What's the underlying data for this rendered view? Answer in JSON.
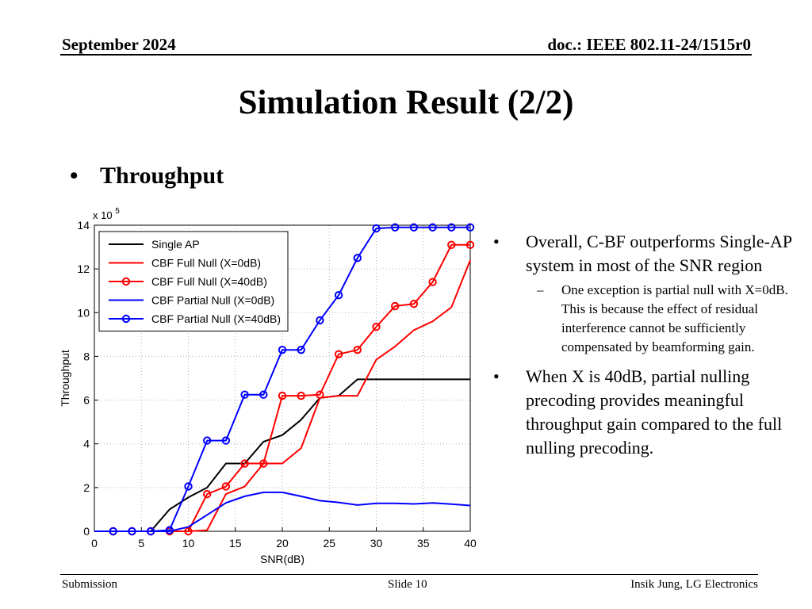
{
  "header": {
    "date": "September 2024",
    "doc": "doc.: IEEE 802.11-24/1515r0"
  },
  "title": "Simulation Result (2/2)",
  "section_bullet": "Throughput",
  "right_text": {
    "bullet1": "Overall, C-BF outperforms Single-AP system in most of the SNR region",
    "sub1": "One exception is partial null with X=0dB. This is because the effect of residual interference cannot be sufficiently compensated by beamforming gain.",
    "bullet2": "When X is 40dB,  partial nulling precoding provides meaningful throughput gain compared to the full nulling precoding."
  },
  "footer": {
    "left": "Submission",
    "middle": "Slide 10",
    "right": "Insik Jung, LG Electronics"
  },
  "chart_data": {
    "type": "line",
    "xlabel": "SNR(dB)",
    "ylabel": "Throughput",
    "multiplier_label": "x 10",
    "multiplier_exp": "5",
    "xlim": [
      0,
      40
    ],
    "ylim": [
      0,
      14
    ],
    "xticks": [
      "0",
      "5",
      "10",
      "15",
      "20",
      "25",
      "30",
      "35",
      "40"
    ],
    "yticks": [
      "0",
      "2",
      "4",
      "6",
      "8",
      "10",
      "12",
      "14"
    ],
    "grid": true,
    "legend_position": "top-left",
    "series": [
      {
        "name": "Single AP",
        "color": "#000000",
        "marker": "none",
        "x": [
          0,
          2,
          4,
          6,
          8,
          10,
          12,
          14,
          16,
          18,
          20,
          22,
          24,
          26,
          28,
          30,
          32,
          34,
          36,
          38,
          40
        ],
        "y": [
          0,
          0,
          0,
          0,
          1,
          1.55,
          2.0,
          3.1,
          3.1,
          4.1,
          4.4,
          5.1,
          6.1,
          6.2,
          6.95,
          6.95,
          6.95,
          6.95,
          6.95,
          6.95,
          6.95
        ]
      },
      {
        "name": "CBF Full Null (X=0dB)",
        "color": "#ff0000",
        "marker": "none",
        "x": [
          0,
          2,
          4,
          6,
          8,
          10,
          12,
          14,
          16,
          18,
          20,
          22,
          24,
          26,
          28,
          30,
          32,
          34,
          36,
          38,
          40
        ],
        "y": [
          0,
          0,
          0,
          0,
          0,
          0,
          0.05,
          1.7,
          2.05,
          3.1,
          3.1,
          3.8,
          6.1,
          6.2,
          6.2,
          7.85,
          8.45,
          9.2,
          9.6,
          10.25,
          12.4
        ]
      },
      {
        "name": "CBF Full Null (X=40dB)",
        "color": "#ff0000",
        "marker": "circle",
        "x": [
          0,
          2,
          4,
          6,
          8,
          10,
          12,
          14,
          16,
          18,
          20,
          22,
          24,
          26,
          28,
          30,
          32,
          34,
          36,
          38,
          40
        ],
        "y": [
          0,
          0,
          0,
          0,
          0,
          0,
          1.7,
          2.05,
          3.1,
          3.1,
          6.2,
          6.2,
          6.25,
          8.1,
          8.3,
          9.35,
          10.3,
          10.4,
          11.4,
          13.1,
          13.1
        ]
      },
      {
        "name": "CBF Partial Null (X=0dB)",
        "color": "#0000ff",
        "marker": "none",
        "x": [
          0,
          2,
          4,
          6,
          8,
          10,
          12,
          14,
          16,
          18,
          20,
          22,
          24,
          26,
          28,
          30,
          32,
          34,
          36,
          38,
          40
        ],
        "y": [
          0,
          0,
          0,
          0,
          0,
          0.2,
          0.75,
          1.3,
          1.6,
          1.78,
          1.78,
          1.6,
          1.4,
          1.32,
          1.2,
          1.28,
          1.28,
          1.25,
          1.3,
          1.24,
          1.18
        ]
      },
      {
        "name": "CBF Partial Null (X=40dB)",
        "color": "#0000ff",
        "marker": "circle",
        "x": [
          0,
          2,
          4,
          6,
          8,
          10,
          12,
          14,
          16,
          18,
          20,
          22,
          24,
          26,
          28,
          30,
          32,
          34,
          36,
          38,
          40
        ],
        "y": [
          0,
          0,
          0,
          0,
          0.05,
          2.05,
          4.15,
          4.15,
          6.25,
          6.25,
          8.3,
          8.3,
          9.65,
          10.8,
          12.5,
          13.85,
          13.9,
          13.9,
          13.9,
          13.9,
          13.9
        ]
      }
    ]
  }
}
